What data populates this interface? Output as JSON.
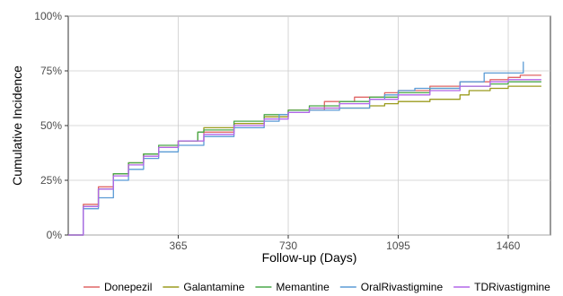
{
  "chart_data": {
    "type": "line",
    "xlabel": "Follow-up (Days)",
    "ylabel": "Cumulative Incidence",
    "xlim": [
      0,
      1600
    ],
    "ylim": [
      0,
      1
    ],
    "x_ticks": [
      {
        "value": 365,
        "label": "365"
      },
      {
        "value": 730,
        "label": "730"
      },
      {
        "value": 1095,
        "label": "1095"
      },
      {
        "value": 1460,
        "label": "1460"
      }
    ],
    "y_ticks": [
      {
        "value": 0,
        "label": "0%"
      },
      {
        "value": 0.25,
        "label": "25%"
      },
      {
        "value": 0.5,
        "label": "50%"
      },
      {
        "value": 0.75,
        "label": "75%"
      },
      {
        "value": 1,
        "label": "100%"
      }
    ],
    "grid": true,
    "legend_position": "bottom",
    "series": [
      {
        "name": "Donepezil",
        "color": "#e06666",
        "points": [
          [
            0,
            0
          ],
          [
            50,
            0.14
          ],
          [
            100,
            0.22
          ],
          [
            150,
            0.28
          ],
          [
            200,
            0.33
          ],
          [
            250,
            0.37
          ],
          [
            300,
            0.4
          ],
          [
            365,
            0.43
          ],
          [
            450,
            0.47
          ],
          [
            550,
            0.51
          ],
          [
            650,
            0.54
          ],
          [
            730,
            0.57
          ],
          [
            850,
            0.61
          ],
          [
            950,
            0.63
          ],
          [
            1050,
            0.65
          ],
          [
            1095,
            0.66
          ],
          [
            1200,
            0.68
          ],
          [
            1300,
            0.7
          ],
          [
            1400,
            0.71
          ],
          [
            1460,
            0.72
          ],
          [
            1500,
            0.73
          ],
          [
            1570,
            0.73
          ]
        ]
      },
      {
        "name": "Galantamine",
        "color": "#9b9b1e",
        "points": [
          [
            0,
            0
          ],
          [
            50,
            0.13
          ],
          [
            100,
            0.21
          ],
          [
            150,
            0.28
          ],
          [
            200,
            0.33
          ],
          [
            250,
            0.37
          ],
          [
            300,
            0.4
          ],
          [
            365,
            0.43
          ],
          [
            430,
            0.47
          ],
          [
            450,
            0.49
          ],
          [
            550,
            0.51
          ],
          [
            650,
            0.54
          ],
          [
            730,
            0.57
          ],
          [
            800,
            0.58
          ],
          [
            850,
            0.58
          ],
          [
            900,
            0.58
          ],
          [
            1000,
            0.59
          ],
          [
            1050,
            0.6
          ],
          [
            1095,
            0.61
          ],
          [
            1150,
            0.61
          ],
          [
            1200,
            0.62
          ],
          [
            1250,
            0.62
          ],
          [
            1300,
            0.64
          ],
          [
            1330,
            0.66
          ],
          [
            1400,
            0.67
          ],
          [
            1460,
            0.68
          ],
          [
            1570,
            0.68
          ]
        ]
      },
      {
        "name": "Memantine",
        "color": "#4aa84a",
        "points": [
          [
            0,
            0
          ],
          [
            50,
            0.13
          ],
          [
            100,
            0.21
          ],
          [
            150,
            0.28
          ],
          [
            200,
            0.33
          ],
          [
            250,
            0.37
          ],
          [
            300,
            0.41
          ],
          [
            365,
            0.43
          ],
          [
            430,
            0.47
          ],
          [
            450,
            0.48
          ],
          [
            550,
            0.52
          ],
          [
            650,
            0.55
          ],
          [
            730,
            0.57
          ],
          [
            800,
            0.59
          ],
          [
            900,
            0.61
          ],
          [
            1000,
            0.63
          ],
          [
            1095,
            0.65
          ],
          [
            1200,
            0.67
          ],
          [
            1300,
            0.68
          ],
          [
            1400,
            0.69
          ],
          [
            1460,
            0.7
          ],
          [
            1570,
            0.7
          ]
        ]
      },
      {
        "name": "OralRivastigmine",
        "color": "#5b9bd5",
        "points": [
          [
            0,
            0
          ],
          [
            50,
            0.12
          ],
          [
            100,
            0.17
          ],
          [
            150,
            0.25
          ],
          [
            200,
            0.3
          ],
          [
            250,
            0.35
          ],
          [
            300,
            0.38
          ],
          [
            365,
            0.41
          ],
          [
            450,
            0.45
          ],
          [
            550,
            0.49
          ],
          [
            620,
            0.49
          ],
          [
            650,
            0.52
          ],
          [
            700,
            0.55
          ],
          [
            730,
            0.56
          ],
          [
            800,
            0.57
          ],
          [
            850,
            0.57
          ],
          [
            900,
            0.58
          ],
          [
            950,
            0.58
          ],
          [
            1000,
            0.62
          ],
          [
            1050,
            0.64
          ],
          [
            1095,
            0.66
          ],
          [
            1150,
            0.67
          ],
          [
            1200,
            0.67
          ],
          [
            1250,
            0.67
          ],
          [
            1300,
            0.7
          ],
          [
            1350,
            0.7
          ],
          [
            1380,
            0.74
          ],
          [
            1460,
            0.74
          ],
          [
            1500,
            0.74
          ],
          [
            1510,
            0.79
          ],
          [
            1510,
            0.74
          ]
        ]
      },
      {
        "name": "TDRivastigmine",
        "color": "#b266e8",
        "points": [
          [
            0,
            0
          ],
          [
            50,
            0.13
          ],
          [
            100,
            0.21
          ],
          [
            150,
            0.27
          ],
          [
            200,
            0.32
          ],
          [
            250,
            0.36
          ],
          [
            300,
            0.4
          ],
          [
            365,
            0.43
          ],
          [
            450,
            0.46
          ],
          [
            550,
            0.5
          ],
          [
            650,
            0.53
          ],
          [
            730,
            0.56
          ],
          [
            800,
            0.58
          ],
          [
            850,
            0.58
          ],
          [
            900,
            0.6
          ],
          [
            1000,
            0.62
          ],
          [
            1095,
            0.64
          ],
          [
            1200,
            0.66
          ],
          [
            1300,
            0.68
          ],
          [
            1400,
            0.7
          ],
          [
            1460,
            0.71
          ],
          [
            1570,
            0.71
          ]
        ]
      }
    ]
  }
}
